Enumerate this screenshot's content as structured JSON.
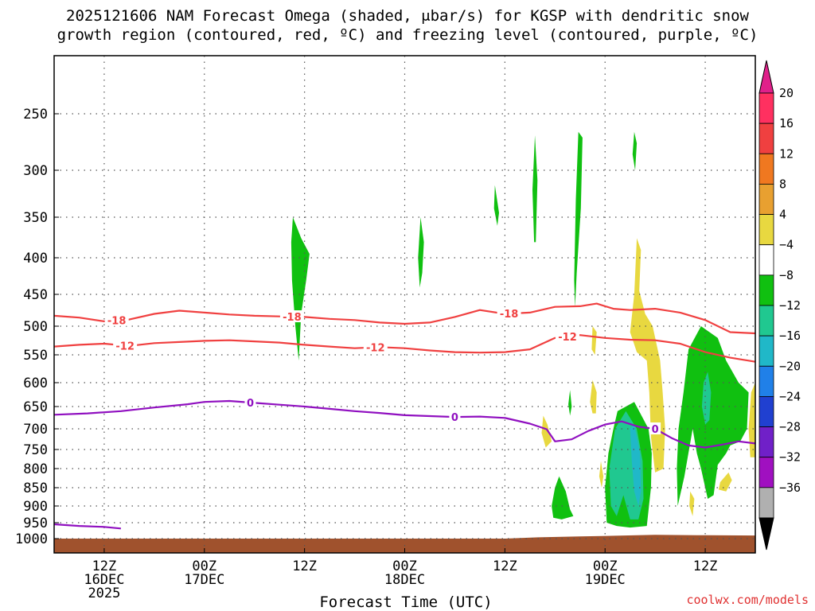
{
  "title_line1": "2025121606 NAM Forecast Omega (shaded, μbar/s) for KGSP with dendritic snow",
  "title_line2": "growth region (contoured, red, ºC) and freezing level (contoured, purple, ºC)",
  "credit": "coolwx.com/models",
  "chart_data": {
    "type": "contour",
    "xlabel": "Forecast Time (UTC)",
    "ylabel": "",
    "x_ticks": [
      {
        "t": 6,
        "l1": "12Z",
        "l2": "16DEC",
        "l3": "2025"
      },
      {
        "t": 18,
        "l1": "00Z",
        "l2": "17DEC",
        "l3": ""
      },
      {
        "t": 30,
        "l1": "12Z",
        "l2": "",
        "l3": ""
      },
      {
        "t": 42,
        "l1": "00Z",
        "l2": "18DEC",
        "l3": ""
      },
      {
        "t": 54,
        "l1": "12Z",
        "l2": "",
        "l3": ""
      },
      {
        "t": 66,
        "l1": "00Z",
        "l2": "19DEC",
        "l3": ""
      },
      {
        "t": 78,
        "l1": "12Z",
        "l2": "",
        "l3": ""
      }
    ],
    "x_range_hours": [
      0,
      84
    ],
    "y_ticks": [
      250,
      300,
      350,
      400,
      450,
      500,
      550,
      600,
      650,
      700,
      750,
      800,
      850,
      900,
      950,
      1000
    ],
    "y_range_hpa": [
      200,
      1040
    ],
    "grid": true,
    "colorbar": {
      "labels": [
        "20",
        "16",
        "12",
        "8",
        "4",
        "−4",
        "−8",
        "−12",
        "−16",
        "−20",
        "−24",
        "−28",
        "−32",
        "−36"
      ],
      "colors": [
        "#ff3060",
        "#f04040",
        "#f07820",
        "#e8a030",
        "#e8d840",
        "#ffffff",
        "#10c010",
        "#20c890",
        "#20b8c8",
        "#2080e8",
        "#2040d0",
        "#7020c8",
        "#a010c0",
        "#b0b0b0"
      ],
      "top_arrow_color": "#e0208a",
      "bottom_arrow_color": "#000000"
    },
    "series": [
      {
        "name": "-18",
        "color": "#f04040",
        "points": [
          [
            0,
            483
          ],
          [
            3,
            486
          ],
          [
            6,
            492
          ],
          [
            9,
            489
          ],
          [
            12,
            480
          ],
          [
            15,
            475
          ],
          [
            18,
            478
          ],
          [
            21,
            481
          ],
          [
            24,
            483
          ],
          [
            27,
            484
          ],
          [
            30,
            485
          ],
          [
            33,
            488
          ],
          [
            36,
            490
          ],
          [
            39,
            494
          ],
          [
            42,
            496
          ],
          [
            45,
            494
          ],
          [
            48,
            485
          ],
          [
            51,
            474
          ],
          [
            54,
            480
          ],
          [
            57,
            478
          ],
          [
            60,
            469
          ],
          [
            63,
            468
          ],
          [
            65,
            464
          ],
          [
            67,
            472
          ],
          [
            69,
            474
          ],
          [
            72,
            472
          ],
          [
            75,
            478
          ],
          [
            78,
            490
          ],
          [
            81,
            510
          ],
          [
            84,
            512
          ]
        ],
        "labels": [
          {
            "t": 7.5,
            "text": "-18"
          },
          {
            "t": 28.5,
            "text": "-18"
          },
          {
            "t": 54.5,
            "text": "-18"
          }
        ]
      },
      {
        "name": "-12",
        "color": "#f04040",
        "points": [
          [
            0,
            535
          ],
          [
            3,
            532
          ],
          [
            6,
            530
          ],
          [
            9,
            534
          ],
          [
            12,
            529
          ],
          [
            15,
            527
          ],
          [
            18,
            525
          ],
          [
            21,
            524
          ],
          [
            24,
            526
          ],
          [
            27,
            528
          ],
          [
            30,
            532
          ],
          [
            33,
            535
          ],
          [
            36,
            538
          ],
          [
            39,
            536
          ],
          [
            42,
            538
          ],
          [
            45,
            542
          ],
          [
            48,
            545
          ],
          [
            51,
            546
          ],
          [
            54,
            545
          ],
          [
            57,
            540
          ],
          [
            60,
            520
          ],
          [
            63,
            515
          ],
          [
            66,
            520
          ],
          [
            69,
            523
          ],
          [
            72,
            524
          ],
          [
            75,
            530
          ],
          [
            78,
            545
          ],
          [
            81,
            555
          ],
          [
            84,
            562
          ]
        ],
        "labels": [
          {
            "t": 8.5,
            "text": "-12"
          },
          {
            "t": 38.5,
            "text": "-12"
          },
          {
            "t": 61.5,
            "text": "-12"
          }
        ]
      },
      {
        "name": "0",
        "color": "#9010c0",
        "points": [
          [
            0,
            668
          ],
          [
            4,
            665
          ],
          [
            8,
            660
          ],
          [
            12,
            652
          ],
          [
            16,
            645
          ],
          [
            18,
            640
          ],
          [
            21,
            638
          ],
          [
            24,
            642
          ],
          [
            27,
            646
          ],
          [
            30,
            650
          ],
          [
            33,
            655
          ],
          [
            36,
            660
          ],
          [
            39,
            664
          ],
          [
            42,
            669
          ],
          [
            45,
            671
          ],
          [
            48,
            673
          ],
          [
            51,
            672
          ],
          [
            54,
            675
          ],
          [
            57,
            688
          ],
          [
            59,
            701
          ],
          [
            60,
            730
          ],
          [
            62,
            725
          ],
          [
            64,
            705
          ],
          [
            66,
            690
          ],
          [
            68,
            683
          ],
          [
            70,
            695
          ],
          [
            72,
            700
          ],
          [
            74,
            722
          ],
          [
            76,
            740
          ],
          [
            78,
            745
          ],
          [
            80,
            738
          ],
          [
            82,
            730
          ],
          [
            84,
            735
          ]
        ],
        "labels": [
          {
            "t": 23.5,
            "text": "0"
          },
          {
            "t": 48,
            "text": "0"
          },
          {
            "t": 72,
            "text": "0"
          }
        ]
      },
      {
        "name": "0",
        "color": "#9010c0",
        "points": [
          [
            0,
            955
          ],
          [
            3,
            960
          ],
          [
            6,
            963
          ],
          [
            8,
            968
          ]
        ],
        "labels": []
      }
    ],
    "notes": "Shaded omega regions (negative = green/teal, positive = yellow) are drawn as approximate filled areas; terrain below surface shown as brown band."
  }
}
